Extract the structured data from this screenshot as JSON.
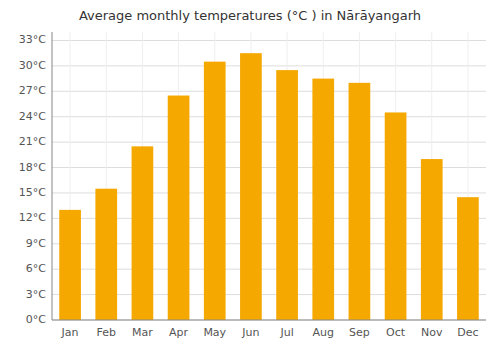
{
  "chart_data": {
    "type": "bar",
    "title": "Average monthly temperatures (°C ) in Nārāyangarh",
    "categories": [
      "Jan",
      "Feb",
      "Mar",
      "Apr",
      "May",
      "Jun",
      "Jul",
      "Aug",
      "Sep",
      "Oct",
      "Nov",
      "Dec"
    ],
    "values": [
      13.0,
      15.5,
      20.5,
      26.5,
      30.5,
      31.5,
      29.5,
      28.5,
      28.0,
      24.5,
      19.0,
      14.5
    ],
    "color": "#F5A800",
    "ylim": [
      0,
      34
    ],
    "yticks": [
      {
        "value": 0,
        "label": "0°C"
      },
      {
        "value": 3,
        "label": "3°C"
      },
      {
        "value": 6,
        "label": "6°C"
      },
      {
        "value": 9,
        "label": "9°C"
      },
      {
        "value": 12,
        "label": "12°C"
      },
      {
        "value": 15,
        "label": "15°C"
      },
      {
        "value": 18,
        "label": "18°C"
      },
      {
        "value": 21,
        "label": "21°C"
      },
      {
        "value": 24,
        "label": "24°C"
      },
      {
        "value": 27,
        "label": "27°C"
      },
      {
        "value": 30,
        "label": "30°C"
      },
      {
        "value": 33,
        "label": "33°C"
      }
    ],
    "grid": true
  }
}
